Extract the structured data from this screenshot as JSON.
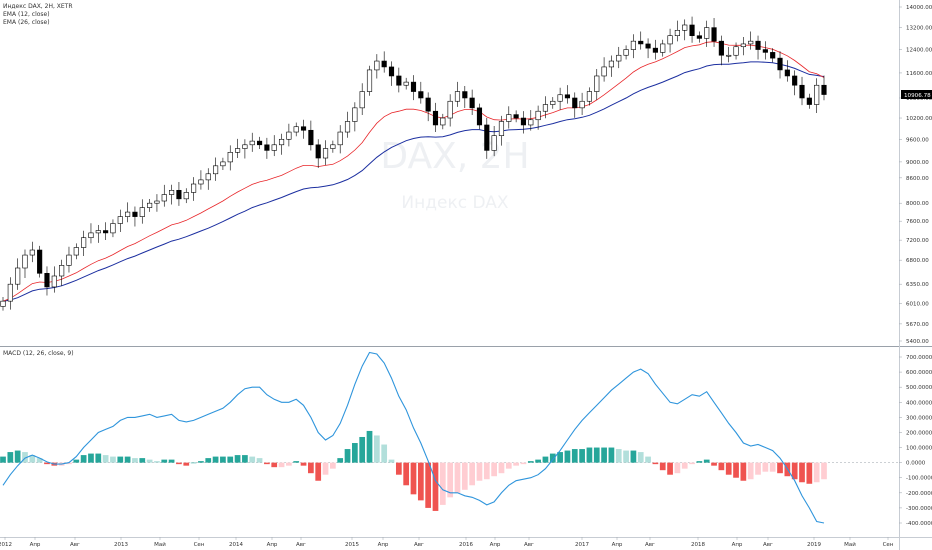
{
  "legend": {
    "symbol": "Индекс DAX, 2Н, XETR",
    "ema_fast": "EMA (12, close)",
    "ema_slow": "EMA (26, close)",
    "macd": "MACD (12, 26, close, 9)"
  },
  "watermark": {
    "line1": "DAX, 2Н",
    "line2": "Индекс DAX"
  },
  "price_badge": "10906.78",
  "colors": {
    "up_candle": "#ffffff",
    "down_candle": "#000000",
    "ema_fast": "#e8262a",
    "ema_slow": "#1c2fa0",
    "macd_line": "#2f95dc",
    "hist_pos_strong": "#26a69a",
    "hist_pos_weak": "#b2dfdb",
    "hist_neg_strong": "#ef5350",
    "hist_neg_weak": "#ffcdd2"
  },
  "chart_data": [
    {
      "type": "candlestick",
      "title": "Индекс DAX, 2Н, XETR",
      "ylim": [
        5400,
        14000
      ],
      "y_scale": "log",
      "y_ticks": [
        "14000.00",
        "13200.00",
        "12400.00",
        "11600.00",
        "10800.00",
        "10200.00",
        "9600.00",
        "9000.00",
        "8600.00",
        "8000.00",
        "7600.00",
        "7200.00",
        "6800.00",
        "6350.00",
        "6010.00",
        "5670.00",
        "5400.00"
      ],
      "x_ticks": [
        "2012",
        "Апр",
        "Авг",
        "2013",
        "Май",
        "Сен",
        "2014",
        "Апр",
        "Авг",
        "2015",
        "Апр",
        "Авг",
        "2016",
        "Апр",
        "Авг",
        "2017",
        "Апр",
        "Авг",
        "2018",
        "Апр",
        "Авг",
        "2019",
        "Май",
        "Сен"
      ],
      "last_price": 10906.78,
      "close": [
        6050,
        6350,
        6650,
        6900,
        7000,
        6550,
        6300,
        6500,
        6700,
        6900,
        7050,
        7250,
        7350,
        7400,
        7350,
        7550,
        7700,
        7800,
        7700,
        7900,
        8000,
        8050,
        8200,
        8300,
        8100,
        8250,
        8450,
        8550,
        8700,
        8900,
        9000,
        9250,
        9350,
        9450,
        9550,
        9450,
        9300,
        9450,
        9600,
        9800,
        9950,
        9850,
        9450,
        9100,
        9350,
        9450,
        9800,
        10100,
        10500,
        11000,
        11700,
        12000,
        11800,
        11500,
        11200,
        11300,
        11000,
        10800,
        10400,
        10000,
        10200,
        10700,
        11000,
        10800,
        10500,
        10000,
        9300,
        9700,
        10100,
        10300,
        10200,
        10000,
        10150,
        10400,
        10600,
        10700,
        10900,
        10800,
        10500,
        10700,
        11000,
        11500,
        11800,
        12000,
        12200,
        12400,
        12700,
        12600,
        12450,
        12300,
        12600,
        12900,
        13100,
        13300,
        12900,
        12800,
        13200,
        12700,
        12200,
        12200,
        12500,
        12600,
        12700,
        12400,
        12300,
        12100,
        11700,
        11500,
        11200,
        10800,
        10600,
        11200,
        10906.78
      ],
      "ema_fast": [
        6050,
        6100,
        6180,
        6270,
        6360,
        6390,
        6380,
        6400,
        6440,
        6500,
        6560,
        6640,
        6720,
        6790,
        6840,
        6910,
        6990,
        7070,
        7130,
        7210,
        7290,
        7360,
        7440,
        7520,
        7560,
        7620,
        7700,
        7780,
        7870,
        7960,
        8050,
        8160,
        8260,
        8350,
        8440,
        8500,
        8540,
        8600,
        8660,
        8750,
        8840,
        8910,
        8910,
        8880,
        8910,
        8940,
        9030,
        9150,
        9310,
        9510,
        9790,
        10050,
        10240,
        10350,
        10400,
        10460,
        10460,
        10420,
        10340,
        10240,
        10200,
        10280,
        10390,
        10450,
        10450,
        10390,
        10230,
        10150,
        10140,
        10170,
        10180,
        10170,
        10180,
        10220,
        10290,
        10360,
        10440,
        10500,
        10500,
        10530,
        10600,
        10740,
        10900,
        11070,
        11250,
        11430,
        11630,
        11780,
        11890,
        11970,
        12080,
        12200,
        12330,
        12470,
        12530,
        12570,
        12660,
        12680,
        12620,
        12560,
        12550,
        12550,
        12560,
        12520,
        12470,
        12410,
        12300,
        12180,
        12020,
        11830,
        11640,
        11570,
        11450
      ],
      "ema_slow": [
        6050,
        6070,
        6110,
        6170,
        6230,
        6260,
        6270,
        6290,
        6320,
        6370,
        6420,
        6480,
        6540,
        6600,
        6650,
        6710,
        6770,
        6830,
        6880,
        6940,
        7000,
        7060,
        7120,
        7180,
        7220,
        7270,
        7330,
        7390,
        7450,
        7520,
        7590,
        7670,
        7750,
        7820,
        7900,
        7960,
        8010,
        8070,
        8130,
        8200,
        8270,
        8330,
        8360,
        8370,
        8400,
        8430,
        8490,
        8560,
        8660,
        8780,
        8950,
        9120,
        9260,
        9380,
        9470,
        9560,
        9620,
        9660,
        9670,
        9660,
        9670,
        9720,
        9790,
        9840,
        9870,
        9870,
        9820,
        9810,
        9830,
        9860,
        9870,
        9880,
        9900,
        9940,
        9990,
        10040,
        10100,
        10150,
        10180,
        10220,
        10280,
        10370,
        10470,
        10580,
        10690,
        10800,
        10930,
        11040,
        11130,
        11210,
        11300,
        11400,
        11500,
        11610,
        11680,
        11740,
        11830,
        11880,
        11890,
        11890,
        11920,
        11940,
        11970,
        11970,
        11960,
        11940,
        11890,
        11830,
        11750,
        11650,
        11550,
        11520,
        11480
      ],
      "series": [
        {
          "name": "EMA (12, close)"
        },
        {
          "name": "EMA (26, close)"
        }
      ]
    },
    {
      "type": "line",
      "title": "MACD (12, 26, close, 9)",
      "ylim": [
        -450,
        750
      ],
      "y_ticks": [
        "700.0000",
        "600.0000",
        "500.0000",
        "400.0000",
        "300.0000",
        "200.0000",
        "100.0000",
        "0.0000",
        "-100.0000",
        "-200.0000",
        "-300.0000",
        "-400.0000"
      ],
      "x_ticks": [
        "2012",
        "Апр",
        "Авг",
        "2013",
        "Май",
        "Сен",
        "2014",
        "Апр",
        "Авг",
        "2015",
        "Апр",
        "Авг",
        "2016",
        "Апр",
        "Авг",
        "2017",
        "Апр",
        "Авг",
        "2018",
        "Апр",
        "Авг",
        "2019",
        "Май",
        "Сен"
      ],
      "series": [
        {
          "name": "MACD",
          "values": [
            -150,
            -80,
            -20,
            30,
            50,
            30,
            5,
            -10,
            -10,
            0,
            40,
            100,
            150,
            200,
            220,
            240,
            280,
            300,
            300,
            310,
            320,
            300,
            310,
            320,
            280,
            270,
            280,
            300,
            320,
            340,
            360,
            400,
            450,
            490,
            500,
            500,
            450,
            420,
            400,
            400,
            420,
            380,
            300,
            200,
            150,
            180,
            260,
            380,
            520,
            640,
            730,
            720,
            660,
            560,
            440,
            350,
            230,
            130,
            10,
            -120,
            -180,
            -200,
            -200,
            -220,
            -230,
            -250,
            -280,
            -260,
            -200,
            -150,
            -120,
            -110,
            -100,
            -80,
            -40,
            20,
            80,
            150,
            220,
            280,
            330,
            380,
            430,
            480,
            520,
            560,
            600,
            620,
            590,
            520,
            460,
            400,
            390,
            420,
            450,
            440,
            470,
            400,
            330,
            260,
            200,
            130,
            110,
            120,
            100,
            80,
            30,
            -40,
            -120,
            -220,
            -300,
            -390,
            -400
          ],
          "histogram": [
            40,
            70,
            80,
            70,
            50,
            30,
            -10,
            -20,
            -20,
            -10,
            20,
            50,
            60,
            60,
            50,
            40,
            40,
            40,
            30,
            30,
            20,
            10,
            20,
            20,
            -10,
            -20,
            0,
            10,
            30,
            40,
            40,
            40,
            50,
            50,
            40,
            30,
            -10,
            -30,
            -30,
            -20,
            10,
            -20,
            -70,
            -120,
            -80,
            -40,
            30,
            90,
            130,
            170,
            210,
            180,
            120,
            20,
            -80,
            -150,
            -210,
            -250,
            -300,
            -320,
            -280,
            -230,
            -200,
            -180,
            -150,
            -120,
            -110,
            -90,
            -70,
            -40,
            -20,
            -10,
            10,
            20,
            40,
            60,
            70,
            80,
            90,
            90,
            100,
            100,
            100,
            100,
            90,
            80,
            80,
            70,
            40,
            -10,
            -50,
            -80,
            -70,
            -40,
            -10,
            10,
            20,
            -20,
            -50,
            -80,
            -100,
            -120,
            -110,
            -80,
            -60,
            -60,
            -70,
            -90,
            -110,
            -130,
            -140,
            -130,
            -110
          ]
        }
      ]
    }
  ]
}
